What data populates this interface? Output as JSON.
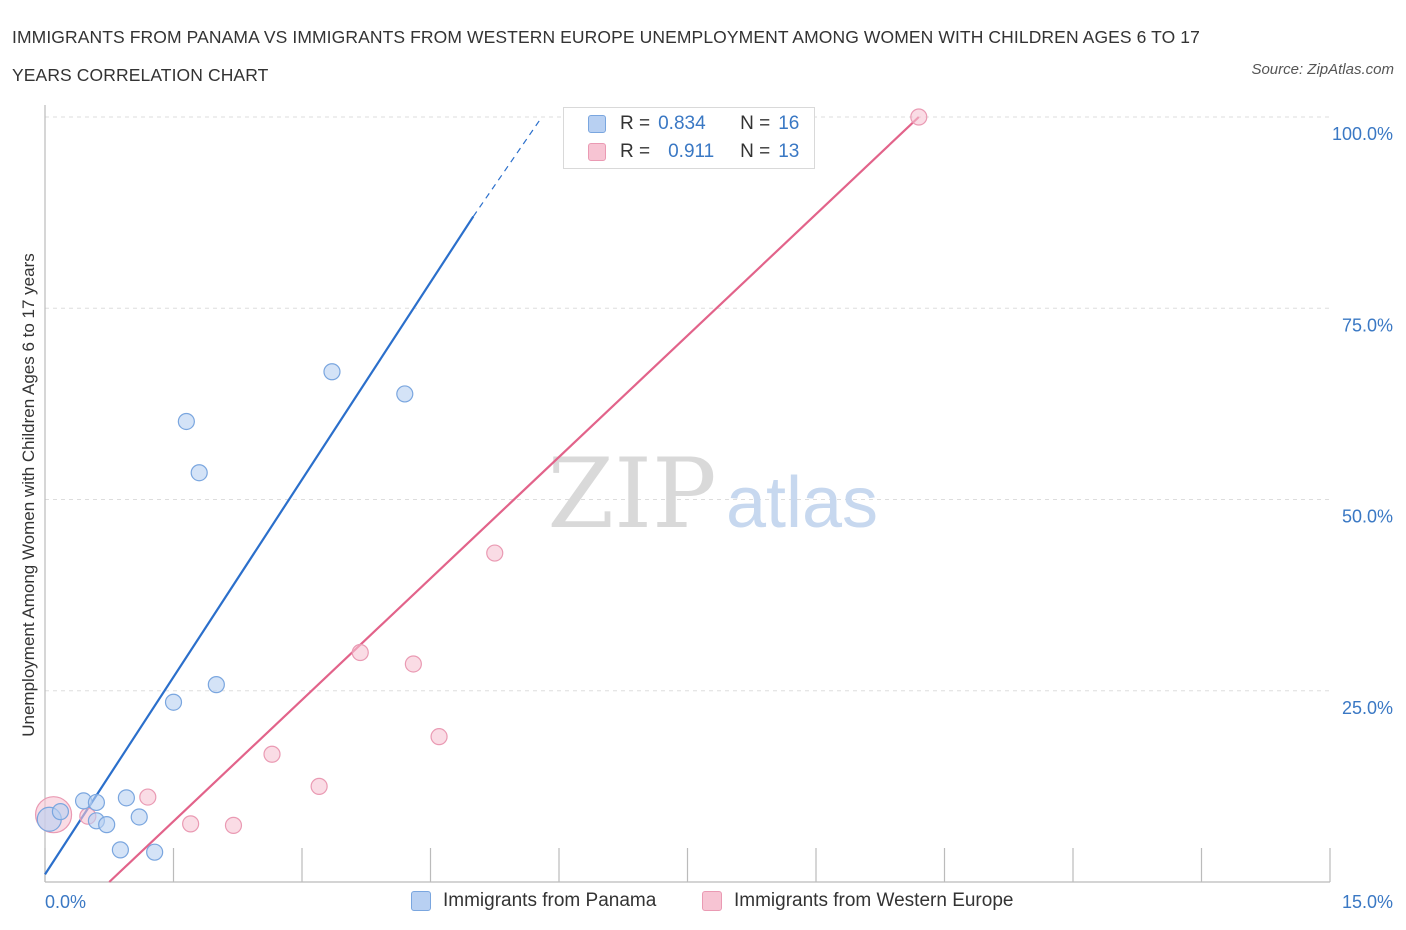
{
  "title": "IMMIGRANTS FROM PANAMA VS IMMIGRANTS FROM WESTERN EUROPE UNEMPLOYMENT AMONG WOMEN WITH CHILDREN AGES 6 TO 17 YEARS CORRELATION CHART",
  "source": "Source: ZipAtlas.com",
  "watermark": {
    "zip": "ZIP",
    "atlas": "atlas"
  },
  "legend": {
    "r_label": "R =",
    "n_label": "N =",
    "rows": [
      {
        "r": "0.834",
        "n": "16"
      },
      {
        "r": "0.911",
        "n": "13"
      }
    ]
  },
  "colors": {
    "panama_fill": "#b8d0f2",
    "panama_stroke": "#7aa6df",
    "panama_line": "#2b6fcb",
    "weu_fill": "#f7c4d3",
    "weu_stroke": "#ea9ab3",
    "weu_line": "#e2638a",
    "axis_text": "#3a78c4",
    "grid": "#dddddd"
  },
  "chart_data": {
    "type": "scatter",
    "title": "IMMIGRANTS FROM PANAMA VS IMMIGRANTS FROM WESTERN EUROPE UNEMPLOYMENT AMONG WOMEN WITH CHILDREN AGES 6 TO 17 YEARS CORRELATION CHART",
    "xlabel": "",
    "ylabel": "Unemployment Among Women with Children Ages 6 to 17 years",
    "xlim": [
      0,
      15
    ],
    "ylim": [
      0,
      100
    ],
    "x_tick_labels": [
      "0.0%",
      "15.0%"
    ],
    "y_ticks": [
      25,
      50,
      75,
      100
    ],
    "y_tick_labels": [
      "25.0%",
      "50.0%",
      "75.0%",
      "100.0%"
    ],
    "grid": true,
    "legend_placement": "top-center",
    "series": [
      {
        "name": "Immigrants from Panama",
        "R": 0.834,
        "N": 16,
        "points": [
          [
            0.05,
            8.2
          ],
          [
            0.18,
            9.2
          ],
          [
            0.45,
            10.6
          ],
          [
            0.6,
            10.4
          ],
          [
            0.6,
            8.0
          ],
          [
            0.72,
            7.5
          ],
          [
            0.88,
            4.2
          ],
          [
            0.95,
            11.0
          ],
          [
            1.1,
            8.5
          ],
          [
            1.28,
            3.9
          ],
          [
            1.5,
            23.5
          ],
          [
            1.65,
            60.2
          ],
          [
            1.8,
            53.5
          ],
          [
            2.0,
            25.8
          ],
          [
            3.35,
            66.7
          ],
          [
            4.2,
            63.8
          ]
        ],
        "trend": {
          "x0": 0.0,
          "y0": 1.0,
          "x1": 5.0,
          "y1": 87.0,
          "dashed_to_x": 5.8,
          "dashed_to_y": 100.0
        }
      },
      {
        "name": "Immigrants from Western Europe",
        "R": 0.911,
        "N": 13,
        "points": [
          [
            0.1,
            8.8
          ],
          [
            0.5,
            8.6
          ],
          [
            1.2,
            11.1
          ],
          [
            1.7,
            7.6
          ],
          [
            2.2,
            7.4
          ],
          [
            2.65,
            16.7
          ],
          [
            3.2,
            12.5
          ],
          [
            3.68,
            30.0
          ],
          [
            4.3,
            28.5
          ],
          [
            4.6,
            19.0
          ],
          [
            5.25,
            43.0
          ],
          [
            7.2,
            100.0
          ],
          [
            10.2,
            100.0
          ]
        ],
        "trend": {
          "x0": 0.75,
          "y0": 0.0,
          "x1": 10.2,
          "y1": 100.0
        }
      }
    ]
  }
}
